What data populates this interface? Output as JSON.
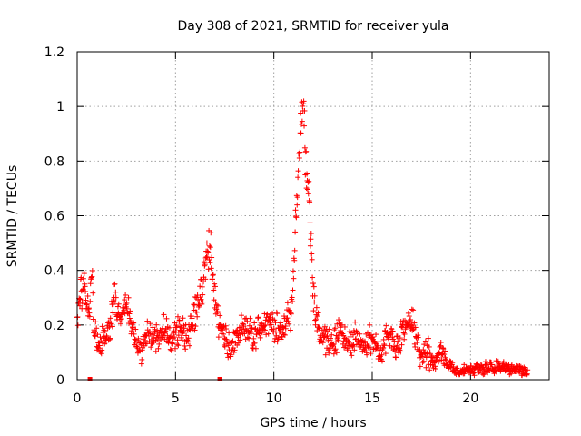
{
  "chart_data": {
    "type": "scatter",
    "title": "Day 308 of 2021, SRMTID for receiver yula",
    "xlabel": "GPS time / hours",
    "ylabel": "SRMTID / TECUs",
    "xlim": [
      0,
      24
    ],
    "ylim": [
      0,
      1.2
    ],
    "x_ticks": [
      0,
      5,
      10,
      15,
      20
    ],
    "x_tick_labels": [
      "0",
      "5",
      "10",
      "15",
      "20"
    ],
    "y_ticks": [
      0,
      0.2,
      0.4,
      0.6,
      0.8,
      1.0,
      1.2
    ],
    "y_tick_labels": [
      "0",
      "0.2",
      "0.4",
      "0.6",
      "0.8",
      "1",
      "1.2"
    ],
    "grid": true,
    "marker": "plus",
    "color": "#ff0000",
    "series": [
      {
        "name": "SRMTID",
        "profile": [
          [
            0.0,
            0.21
          ],
          [
            0.1,
            0.3
          ],
          [
            0.3,
            0.33
          ],
          [
            0.5,
            0.3
          ],
          [
            0.6,
            0.25
          ],
          [
            0.75,
            0.42
          ],
          [
            0.85,
            0.18
          ],
          [
            1.0,
            0.15
          ],
          [
            1.3,
            0.14
          ],
          [
            1.6,
            0.18
          ],
          [
            1.9,
            0.3
          ],
          [
            2.2,
            0.22
          ],
          [
            2.5,
            0.28
          ],
          [
            2.8,
            0.2
          ],
          [
            3.0,
            0.15
          ],
          [
            3.3,
            0.1
          ],
          [
            3.6,
            0.17
          ],
          [
            4.0,
            0.15
          ],
          [
            4.4,
            0.2
          ],
          [
            4.8,
            0.14
          ],
          [
            5.2,
            0.19
          ],
          [
            5.6,
            0.15
          ],
          [
            6.0,
            0.25
          ],
          [
            6.3,
            0.3
          ],
          [
            6.6,
            0.45
          ],
          [
            6.8,
            0.48
          ],
          [
            7.0,
            0.3
          ],
          [
            7.2,
            0.2
          ],
          [
            7.5,
            0.16
          ],
          [
            7.8,
            0.1
          ],
          [
            8.2,
            0.18
          ],
          [
            8.6,
            0.2
          ],
          [
            9.0,
            0.15
          ],
          [
            9.4,
            0.2
          ],
          [
            9.8,
            0.22
          ],
          [
            10.2,
            0.18
          ],
          [
            10.6,
            0.2
          ],
          [
            10.9,
            0.25
          ],
          [
            11.1,
            0.55
          ],
          [
            11.3,
            0.82
          ],
          [
            11.5,
            1.05
          ],
          [
            11.6,
            0.85
          ],
          [
            11.8,
            0.65
          ],
          [
            12.0,
            0.3
          ],
          [
            12.2,
            0.2
          ],
          [
            12.6,
            0.15
          ],
          [
            13.0,
            0.12
          ],
          [
            13.4,
            0.18
          ],
          [
            13.8,
            0.12
          ],
          [
            14.2,
            0.16
          ],
          [
            14.6,
            0.12
          ],
          [
            15.0,
            0.15
          ],
          [
            15.4,
            0.1
          ],
          [
            15.8,
            0.18
          ],
          [
            16.2,
            0.12
          ],
          [
            16.6,
            0.18
          ],
          [
            17.0,
            0.22
          ],
          [
            17.4,
            0.08
          ],
          [
            17.8,
            0.1
          ],
          [
            18.2,
            0.05
          ],
          [
            18.5,
            0.13
          ],
          [
            18.8,
            0.06
          ],
          [
            19.2,
            0.03
          ],
          [
            19.6,
            0.04
          ],
          [
            20.0,
            0.04
          ],
          [
            20.5,
            0.04
          ],
          [
            21.0,
            0.045
          ],
          [
            21.5,
            0.045
          ],
          [
            22.0,
            0.04
          ],
          [
            22.5,
            0.035
          ],
          [
            22.9,
            0.025
          ]
        ],
        "x_start": 0.0,
        "x_end": 22.9,
        "point_count": 1150,
        "spread": 0.055
      }
    ],
    "outliers": [
      {
        "x": 0.65,
        "y": 0.0
      },
      {
        "x": 7.25,
        "y": 0.0
      }
    ]
  }
}
